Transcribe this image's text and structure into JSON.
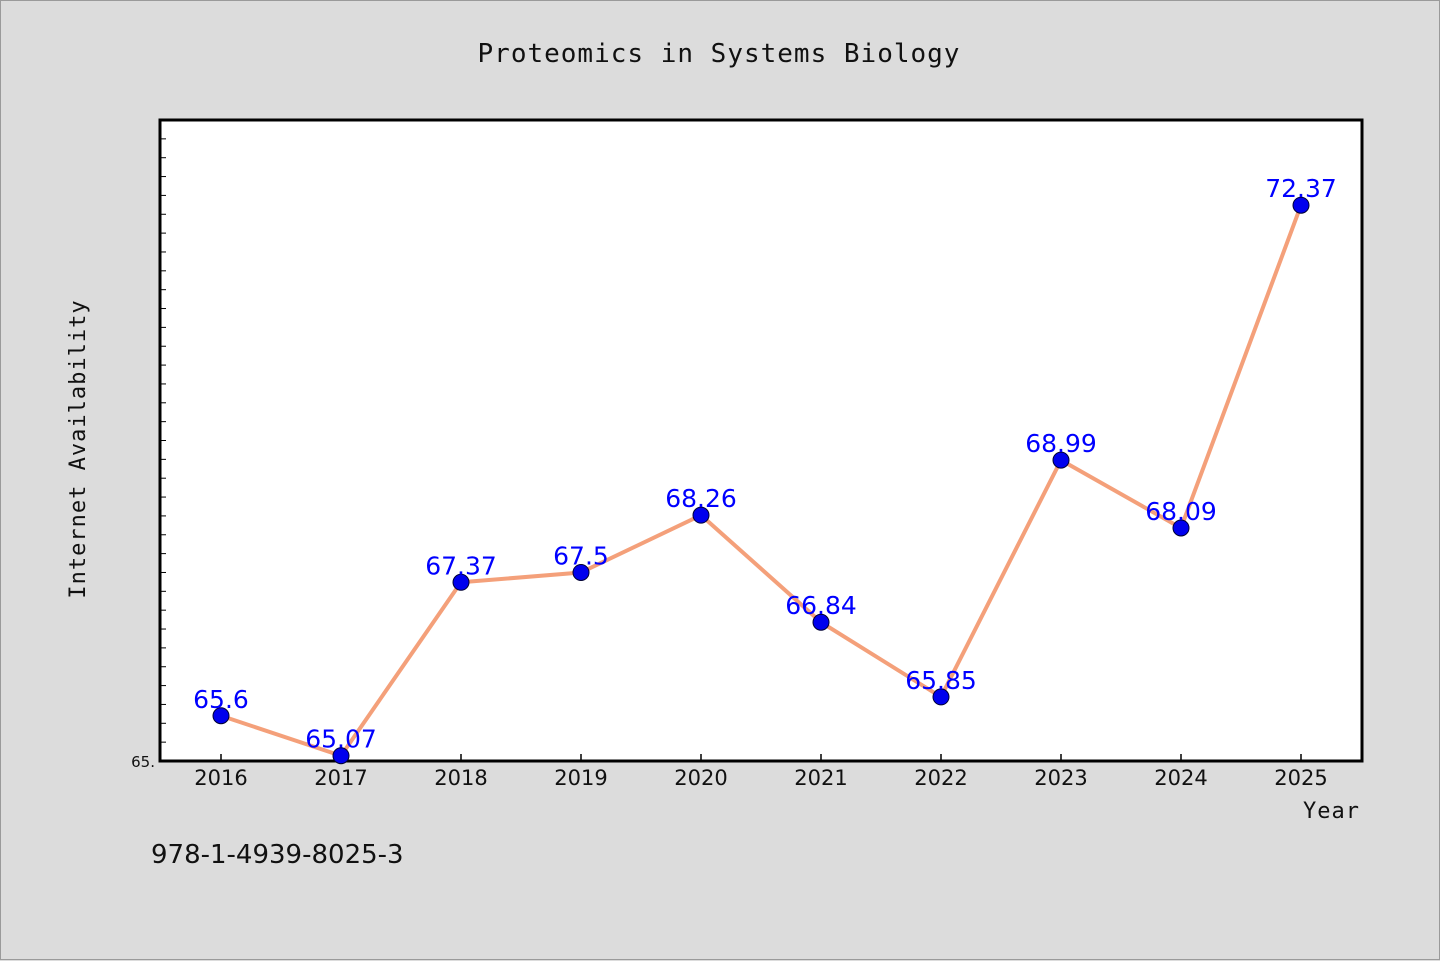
{
  "chart_data": {
    "type": "line",
    "title": "Proteomics in Systems Biology",
    "xlabel": "Year",
    "ylabel": "Internet Availability",
    "categories": [
      "2016",
      "2017",
      "2018",
      "2019",
      "2020",
      "2021",
      "2022",
      "2023",
      "2024",
      "2025"
    ],
    "series": [
      {
        "values": [
          65.6,
          65.07,
          67.37,
          67.5,
          68.26,
          66.84,
          65.85,
          68.99,
          68.09,
          72.37
        ],
        "labels": [
          "65.6",
          "65.07",
          "67.37",
          "67.5",
          "68.26",
          "66.84",
          "65.85",
          "68.99",
          "68.09",
          "72.37"
        ],
        "line_color": "#f4a07a",
        "marker_color": "#0000ee"
      }
    ],
    "ylim": [
      65,
      73.5
    ],
    "y_tick_labels": [
      "65."
    ],
    "grid": false,
    "legend": "none"
  },
  "footer": {
    "isbn": "978-1-4939-8025-3"
  },
  "colors": {
    "background": "#dcdcdc",
    "plot_area": "#ffffff",
    "label_color": "#0000ff"
  }
}
